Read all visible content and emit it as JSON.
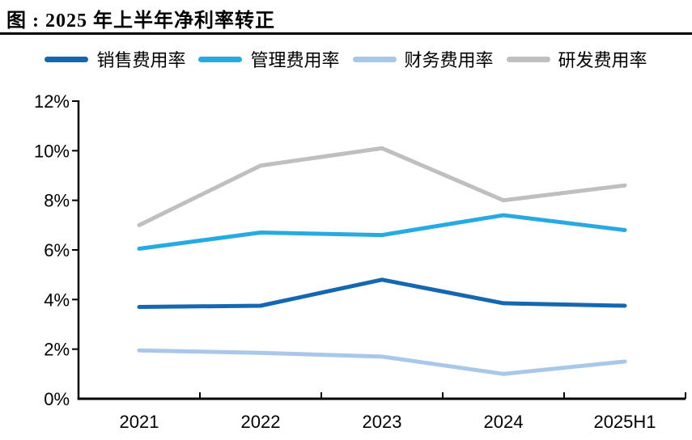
{
  "header": {
    "title": "图 : 2025 年上半年净利率转正"
  },
  "chart_data": {
    "type": "line",
    "title": "2025 年上半年净利率转正",
    "categories": [
      "2021",
      "2022",
      "2023",
      "2024",
      "2025H1"
    ],
    "series": [
      {
        "name": "销售费用率",
        "color": "#1667B1",
        "values": [
          3.7,
          3.75,
          4.8,
          3.85,
          3.75
        ]
      },
      {
        "name": "管理费用率",
        "color": "#27AAE1",
        "values": [
          6.05,
          6.7,
          6.6,
          7.4,
          6.8
        ]
      },
      {
        "name": "财务费用率",
        "color": "#A9C7E9",
        "values": [
          1.95,
          1.85,
          1.7,
          1.0,
          1.5
        ]
      },
      {
        "name": "研发费用率",
        "color": "#BFBFBF",
        "values": [
          7.0,
          9.4,
          10.1,
          8.0,
          8.6
        ]
      }
    ],
    "ylabel": "",
    "xlabel": "",
    "ylim": [
      0,
      12
    ],
    "ytick_step": 2,
    "ytick_labels": [
      "0%",
      "2%",
      "4%",
      "6%",
      "8%",
      "10%",
      "12%"
    ],
    "grid": false,
    "legend_position": "top",
    "axis_color": "#000000",
    "line_width": 5
  }
}
